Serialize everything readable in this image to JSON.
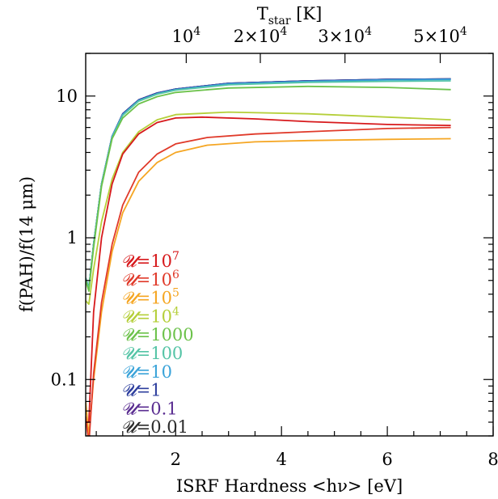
{
  "chart_data": {
    "type": "line",
    "xlabel": "ISRF Hardness <hν> [eV]",
    "ylabel": "f(PAH)/f(14 μm)",
    "top_axis_label": "T",
    "top_axis_label_sub": "star",
    "top_axis_label_unit": " [K]",
    "xlim": [
      0.3,
      8
    ],
    "ylim": [
      0.04,
      20
    ],
    "yscale": "log",
    "x_ticks": [
      {
        "value": 2,
        "label": "2"
      },
      {
        "value": 4,
        "label": "4"
      },
      {
        "value": 6,
        "label": "6"
      },
      {
        "value": 8,
        "label": "8"
      }
    ],
    "y_ticks": [
      {
        "value": 0.1,
        "label": "0.1"
      },
      {
        "value": 1,
        "label": "1"
      },
      {
        "value": 10,
        "label": "10"
      }
    ],
    "top_ticks": [
      {
        "x_value": 2.2,
        "base": "10",
        "exp": "4"
      },
      {
        "x_value": 3.6,
        "base": "2×10",
        "exp": "4"
      },
      {
        "x_value": 5.2,
        "base": "3×10",
        "exp": "4"
      },
      {
        "x_value": 7.0,
        "base": "5×10",
        "exp": "4"
      }
    ],
    "grid": false,
    "legend_position": "lower-left",
    "series": [
      {
        "name": "0.01",
        "label_base": "10",
        "label_exp": "",
        "color": "#2b2b2b",
        "x": [
          0.3,
          0.36,
          0.45,
          0.6,
          0.8,
          1.0,
          1.3,
          1.65,
          2.0,
          3.0,
          4.5,
          6.0,
          7.2
        ],
        "y": [
          0.52,
          0.44,
          0.9,
          2.4,
          5.2,
          7.5,
          9.4,
          10.5,
          11.2,
          12.3,
          12.8,
          13.1,
          13.2
        ]
      },
      {
        "name": "0.1",
        "color": "#5a2d91",
        "x": [
          0.3,
          0.36,
          0.45,
          0.6,
          0.8,
          1.0,
          1.3,
          1.65,
          2.0,
          3.0,
          4.5,
          6.0,
          7.2
        ],
        "y": [
          0.52,
          0.44,
          0.9,
          2.4,
          5.2,
          7.5,
          9.4,
          10.5,
          11.2,
          12.3,
          12.8,
          13.1,
          13.2
        ]
      },
      {
        "name": "1",
        "color": "#2e3f9e",
        "x": [
          0.3,
          0.36,
          0.45,
          0.6,
          0.8,
          1.0,
          1.3,
          1.65,
          2.0,
          3.0,
          4.5,
          6.0,
          7.2
        ],
        "y": [
          0.52,
          0.44,
          0.9,
          2.4,
          5.2,
          7.5,
          9.4,
          10.5,
          11.2,
          12.3,
          12.8,
          13.1,
          13.2
        ]
      },
      {
        "name": "10",
        "color": "#3aa3d9",
        "x": [
          0.3,
          0.36,
          0.45,
          0.6,
          0.8,
          1.0,
          1.3,
          1.65,
          2.0,
          3.0,
          4.5,
          6.0,
          7.2
        ],
        "y": [
          0.52,
          0.44,
          0.9,
          2.4,
          5.2,
          7.4,
          9.3,
          10.4,
          11.1,
          12.2,
          12.7,
          13.0,
          13.1
        ]
      },
      {
        "name": "100",
        "color": "#55c4a6",
        "x": [
          0.3,
          0.36,
          0.45,
          0.6,
          0.8,
          1.0,
          1.3,
          1.65,
          2.0,
          3.0,
          4.5,
          6.0,
          7.2
        ],
        "y": [
          0.52,
          0.44,
          0.9,
          2.4,
          5.1,
          7.3,
          9.2,
          10.3,
          11.0,
          12.0,
          12.5,
          12.7,
          12.8
        ]
      },
      {
        "name": "1000",
        "color": "#6cc24a",
        "x": [
          0.3,
          0.36,
          0.45,
          0.6,
          0.8,
          1.0,
          1.3,
          1.65,
          2.0,
          3.0,
          4.5,
          6.0,
          7.2
        ],
        "y": [
          0.5,
          0.42,
          0.85,
          2.3,
          5.0,
          7.0,
          8.8,
          9.9,
          10.6,
          11.4,
          11.7,
          11.5,
          11.1
        ]
      },
      {
        "name": "10⁴",
        "color": "#b5cf3a",
        "x": [
          0.3,
          0.36,
          0.45,
          0.6,
          0.8,
          1.0,
          1.3,
          1.65,
          2.0,
          3.0,
          4.5,
          6.0,
          7.2
        ],
        "y": [
          0.36,
          0.34,
          0.6,
          1.3,
          2.6,
          4.0,
          5.6,
          6.8,
          7.4,
          7.7,
          7.5,
          7.1,
          6.8
        ]
      },
      {
        "name": "10⁵",
        "color": "#f5a623",
        "x": [
          0.3,
          0.36,
          0.45,
          0.6,
          0.8,
          1.0,
          1.3,
          1.65,
          2.0,
          2.6,
          3.5,
          4.5,
          6.0,
          7.2
        ],
        "y": [
          0.07,
          0.04,
          0.1,
          0.3,
          0.8,
          1.5,
          2.5,
          3.4,
          4.0,
          4.5,
          4.75,
          4.85,
          4.95,
          5.0
        ]
      },
      {
        "name": "10⁶",
        "color": "#e03a2a",
        "x": [
          0.3,
          0.36,
          0.45,
          0.6,
          0.8,
          1.0,
          1.3,
          1.65,
          2.0,
          2.6,
          3.5,
          4.5,
          6.0,
          7.2
        ],
        "y": [
          0.055,
          0.035,
          0.11,
          0.35,
          0.9,
          1.7,
          2.9,
          3.9,
          4.6,
          5.1,
          5.4,
          5.6,
          5.9,
          6.0
        ]
      },
      {
        "name": "10⁷",
        "color": "#d7191c",
        "x": [
          0.3,
          0.36,
          0.45,
          0.6,
          0.8,
          1.0,
          1.3,
          1.65,
          2.0,
          2.5,
          3.5,
          4.5,
          6.0,
          7.2
        ],
        "y": [
          0.05,
          0.05,
          0.3,
          1.0,
          2.4,
          3.9,
          5.4,
          6.5,
          7.0,
          7.1,
          6.9,
          6.6,
          6.3,
          6.2
        ]
      }
    ],
    "legend": [
      {
        "prefix": "𝓤=",
        "base": "10",
        "exp": "7",
        "color": "#d7191c"
      },
      {
        "prefix": "𝓤=",
        "base": "10",
        "exp": "6",
        "color": "#e03a2a"
      },
      {
        "prefix": "𝓤=",
        "base": "10",
        "exp": "5",
        "color": "#f5a623"
      },
      {
        "prefix": "𝓤=",
        "base": "10",
        "exp": "4",
        "color": "#b5cf3a"
      },
      {
        "prefix": "𝓤=",
        "base": "1000",
        "exp": "",
        "color": "#6cc24a"
      },
      {
        "prefix": "𝓤=",
        "base": "100",
        "exp": "",
        "color": "#55c4a6"
      },
      {
        "prefix": "𝓤=",
        "base": "10",
        "exp": "",
        "color": "#3aa3d9"
      },
      {
        "prefix": "𝓤=",
        "base": "1",
        "exp": "",
        "color": "#2e3f9e"
      },
      {
        "prefix": "𝓤=",
        "base": "0.1",
        "exp": "",
        "color": "#5a2d91"
      },
      {
        "prefix": "𝓤=",
        "base": "0.01",
        "exp": "",
        "color": "#2b2b2b"
      }
    ]
  }
}
